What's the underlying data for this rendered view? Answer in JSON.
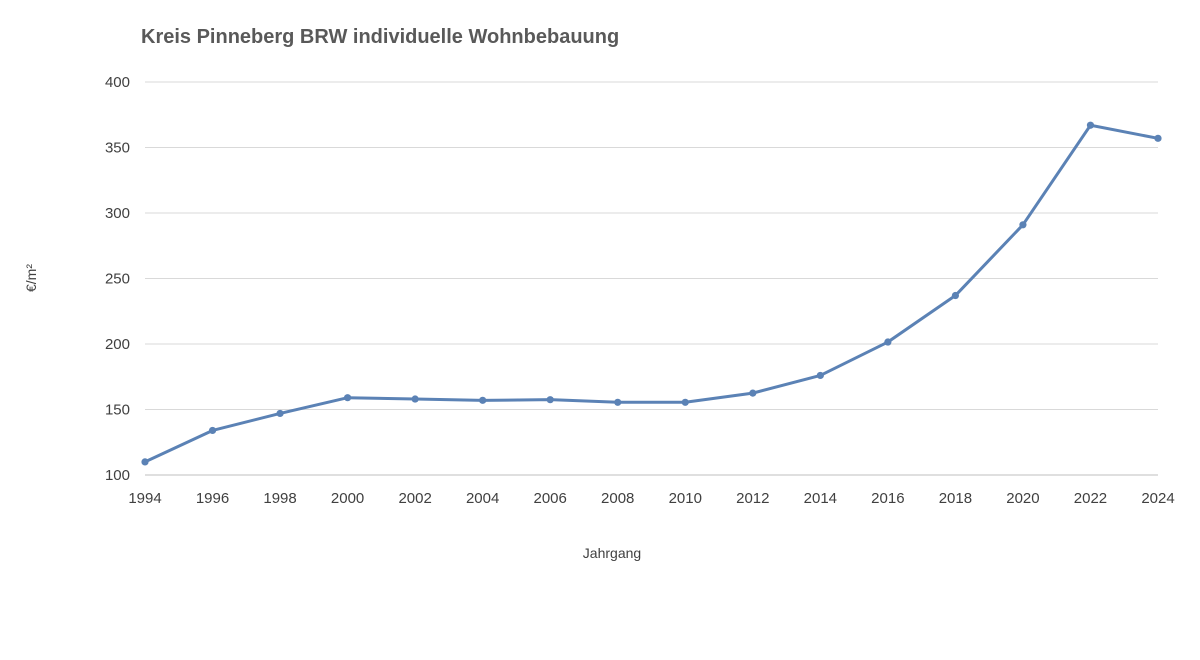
{
  "chart_data": {
    "type": "line",
    "title": "Kreis Pinneberg BRW individuelle Wohnbebauung",
    "xlabel": "Jahrgang",
    "ylabel": "€/m²",
    "x": [
      1994,
      1996,
      1998,
      2000,
      2002,
      2004,
      2006,
      2008,
      2010,
      2012,
      2014,
      2016,
      2018,
      2020,
      2022,
      2024
    ],
    "series": [
      {
        "values": [
          110,
          134,
          147,
          159,
          158,
          157,
          157.5,
          155.5,
          155.5,
          162.5,
          176,
          201.5,
          237,
          291,
          367,
          357
        ]
      }
    ],
    "xlim": [
      1994,
      2024
    ],
    "ylim": [
      100,
      400
    ],
    "yticks": [
      "100",
      "150",
      "200",
      "250",
      "300",
      "350",
      "400"
    ],
    "xticks": [
      "1994",
      "1996",
      "1998",
      "2000",
      "2002",
      "2004",
      "2006",
      "2008",
      "2010",
      "2012",
      "2014",
      "2016",
      "2018",
      "2020",
      "2022",
      "2024"
    ],
    "grid": true,
    "legend": "none",
    "colors": {
      "line": "#5b82b5",
      "marker": "#5b82b5"
    }
  }
}
